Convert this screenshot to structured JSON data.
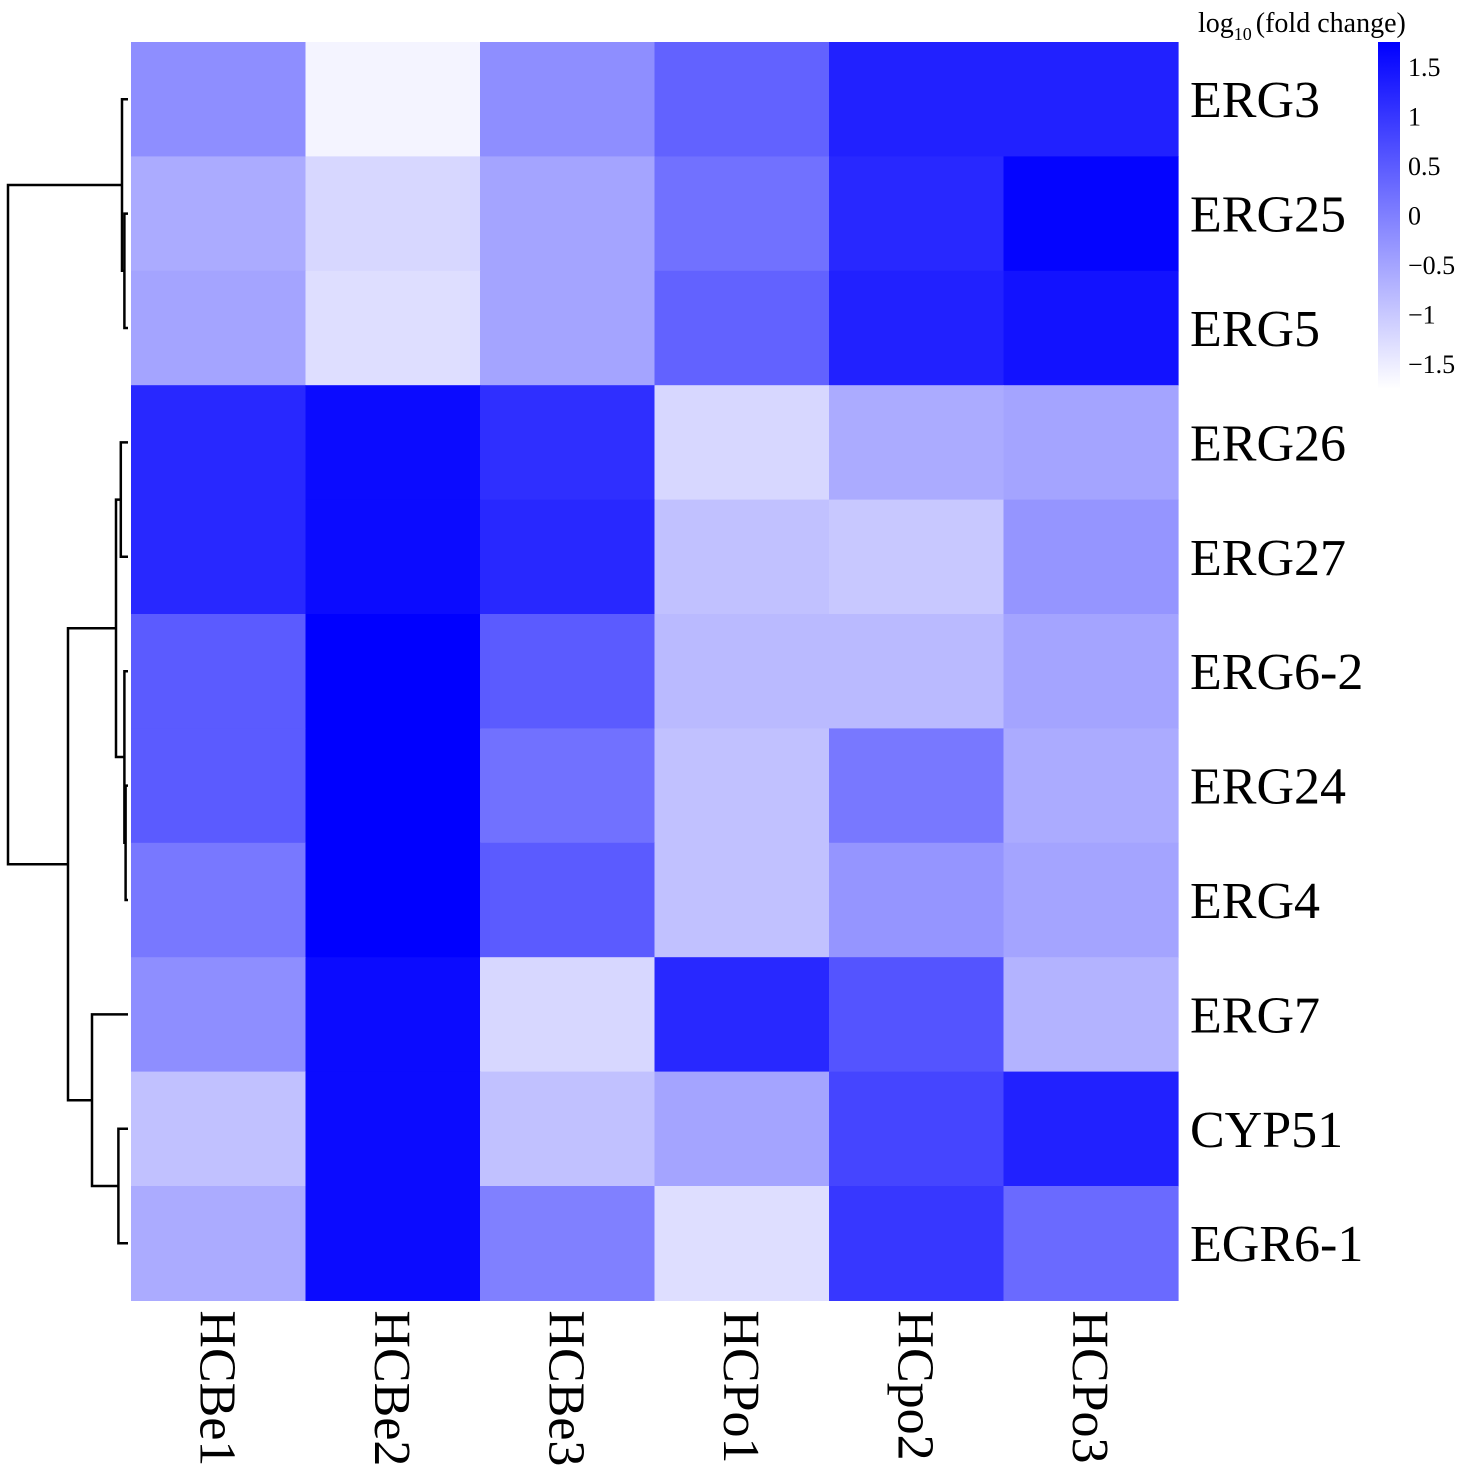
{
  "chart_data": {
    "type": "heatmap",
    "legend": {
      "title_main": "log",
      "title_sub": "10",
      "title_rest": "(fold change)",
      "ticks": [
        "1.5",
        "1",
        "0.5",
        "0",
        "−0.5",
        "−1",
        "−1.5"
      ],
      "tick_values": [
        1.5,
        1,
        0.5,
        0,
        -0.5,
        -1,
        -1.5
      ],
      "range": [
        -1.75,
        1.75
      ],
      "low_color": "#ffffff",
      "high_color": "#0000ff",
      "placement": "top-right"
    },
    "columns": [
      "HCBe1",
      "HCBe2",
      "HCBe3",
      "HCPo1",
      "HCpo2",
      "HCPo3"
    ],
    "rows": [
      "ERG3",
      "ERG25",
      "ERG5",
      "ERG26",
      "ERG27",
      "ERG6-2",
      "ERG24",
      "ERG4",
      "ERG7",
      "CYP51",
      "EGR6-1"
    ],
    "values": [
      [
        -0.2,
        -1.6,
        -0.2,
        0.4,
        1.3,
        1.3
      ],
      [
        -0.6,
        -1.2,
        -0.5,
        0.2,
        1.2,
        1.7
      ],
      [
        -0.5,
        -1.3,
        -0.5,
        0.4,
        1.3,
        1.5
      ],
      [
        1.2,
        1.6,
        1.1,
        -1.2,
        -0.6,
        -0.5
      ],
      [
        1.2,
        1.6,
        1.2,
        -0.9,
        -1.0,
        -0.3
      ],
      [
        0.5,
        1.8,
        0.5,
        -0.8,
        -0.8,
        -0.5
      ],
      [
        0.5,
        1.8,
        0.2,
        -0.9,
        0.1,
        -0.6
      ],
      [
        0.1,
        1.8,
        0.5,
        -0.9,
        -0.3,
        -0.5
      ],
      [
        -0.2,
        1.6,
        -1.2,
        1.2,
        0.6,
        -0.7
      ],
      [
        -0.9,
        1.6,
        -0.9,
        -0.5,
        0.8,
        1.3
      ],
      [
        -0.6,
        1.6,
        0.0,
        -1.3,
        1.0,
        0.3
      ]
    ],
    "dendrogram": {
      "description": "row clustering tree on left",
      "merges": [
        [
          [
            1,
            2
          ],
          0.03
        ],
        [
          [
            0,
            "m0"
          ],
          0.05
        ],
        [
          [
            3,
            4
          ],
          0.06
        ],
        [
          [
            6,
            7
          ],
          0.02
        ],
        [
          [
            5,
            "m3"
          ],
          0.03
        ],
        [
          [
            "m2",
            "m4"
          ],
          0.1
        ],
        [
          [
            9,
            10
          ],
          0.08
        ],
        [
          [
            8,
            "m6"
          ],
          0.3
        ],
        [
          [
            "m5",
            "m7"
          ],
          0.5
        ],
        [
          [
            "m1",
            "m8"
          ],
          1.0
        ]
      ]
    }
  }
}
